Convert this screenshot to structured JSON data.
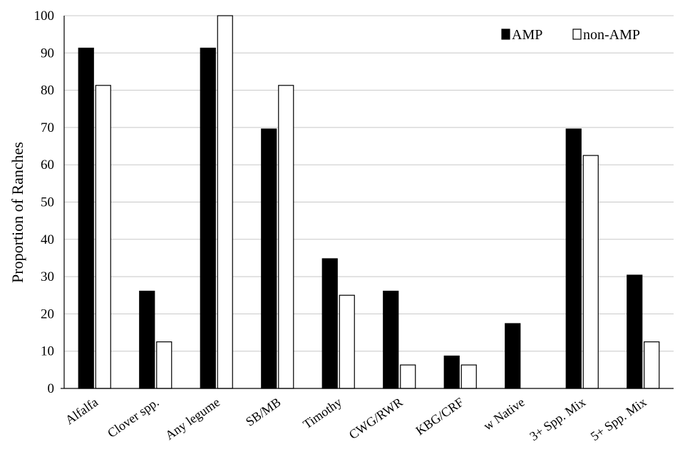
{
  "chart_data": {
    "type": "bar",
    "title": "",
    "xlabel": "",
    "ylabel": "Proportion of Ranches",
    "ylim": [
      0,
      100
    ],
    "yticks": [
      0,
      10,
      20,
      30,
      40,
      50,
      60,
      70,
      80,
      90,
      100
    ],
    "grid": true,
    "legend_position": "top-right",
    "categories": [
      "Alfalfa",
      "Clover spp.",
      "Any legume",
      "SB/MB",
      "Timothy",
      "CWG/RWR",
      "KBG/CRF",
      "w Native",
      "3+ Spp. Mix",
      "5+ Spp. Mix"
    ],
    "series": [
      {
        "name": "AMP",
        "color": "#000000",
        "values": [
          91.3,
          26.1,
          91.3,
          69.6,
          34.8,
          26.1,
          8.7,
          17.4,
          69.6,
          30.4
        ]
      },
      {
        "name": "non-AMP",
        "color": "#ffffff",
        "values": [
          81.3,
          12.5,
          100,
          81.3,
          25.0,
          6.3,
          6.3,
          0,
          62.5,
          12.5
        ]
      }
    ]
  }
}
